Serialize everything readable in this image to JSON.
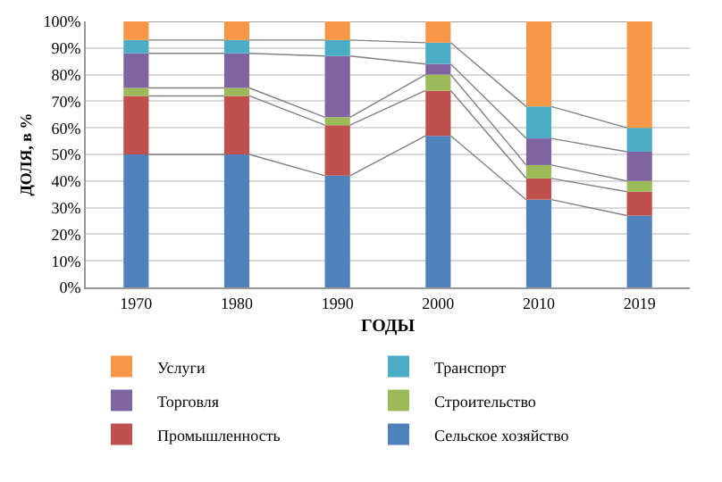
{
  "chart_data": {
    "type": "bar",
    "stacked": true,
    "xlabel": "ГОДЫ",
    "ylabel": "ДОЛЯ, в %",
    "categories": [
      "1970",
      "1980",
      "1990",
      "2000",
      "2010",
      "2019"
    ],
    "series": [
      {
        "name": "Сельское хозяйство",
        "color": "#4f81bd",
        "values": [
          50,
          50,
          42,
          57,
          33,
          27
        ]
      },
      {
        "name": "Промышленность",
        "color": "#c0504d",
        "values": [
          22,
          22,
          19,
          17,
          8,
          9
        ]
      },
      {
        "name": "Строительство",
        "color": "#9bbb59",
        "values": [
          3,
          3,
          3,
          6,
          5,
          4
        ]
      },
      {
        "name": "Торговля",
        "color": "#8064a2",
        "values": [
          13,
          13,
          23,
          4,
          10,
          11
        ]
      },
      {
        "name": "Транспорт",
        "color": "#4bacc6",
        "values": [
          5,
          5,
          6,
          8,
          12,
          9
        ]
      },
      {
        "name": "Услуги",
        "color": "#f79646",
        "values": [
          7,
          7,
          7,
          8,
          32,
          40
        ]
      }
    ],
    "ylim": [
      0,
      100
    ],
    "yticks": [
      {
        "value": 0,
        "label": "0%"
      },
      {
        "value": 10,
        "label": "10%"
      },
      {
        "value": 20,
        "label": "20%"
      },
      {
        "value": 30,
        "label": "30%"
      },
      {
        "value": 40,
        "label": "40%"
      },
      {
        "value": 50,
        "label": "50%"
      },
      {
        "value": 60,
        "label": "60%"
      },
      {
        "value": 70,
        "label": "70%"
      },
      {
        "value": 80,
        "label": "80%"
      },
      {
        "value": 90,
        "label": "90%"
      },
      {
        "value": 100,
        "label": "100%"
      }
    ],
    "grid": "y",
    "legend": "bottom"
  }
}
